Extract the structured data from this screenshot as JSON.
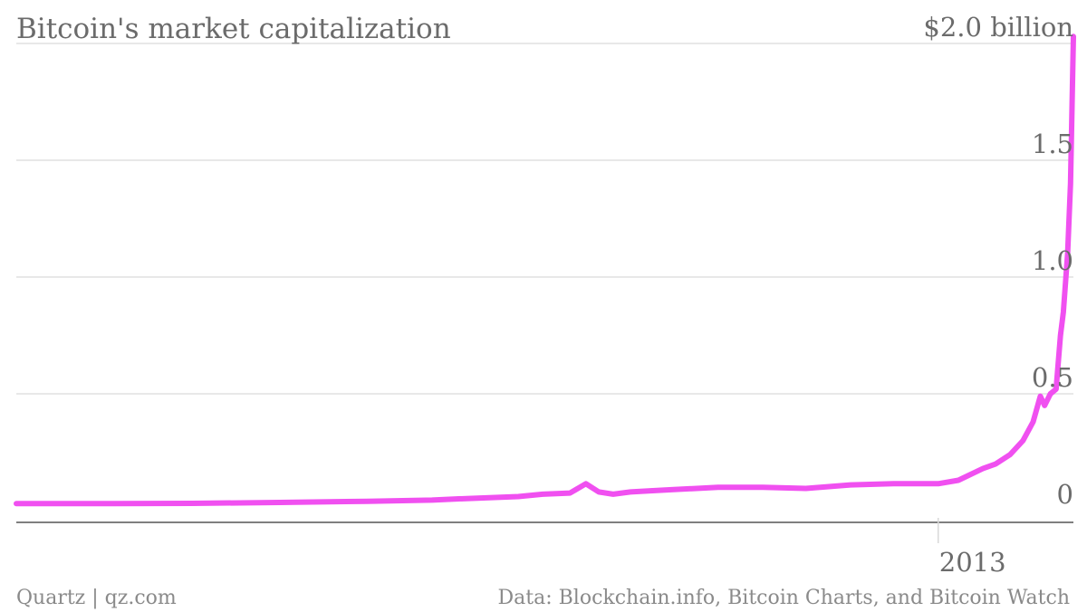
{
  "chart_data": {
    "type": "line",
    "title": "Bitcoin's market capitalization",
    "ylim": [
      0,
      2.0
    ],
    "y_ticks": [
      {
        "value": 2.0,
        "label": "$2.0 billion"
      },
      {
        "value": 1.5,
        "label": "1.5"
      },
      {
        "value": 1.0,
        "label": "1.0"
      },
      {
        "value": 0.5,
        "label": "0.5"
      },
      {
        "value": 0,
        "label": "0"
      }
    ],
    "x_ticks": [
      {
        "value": "2013-01-01",
        "label": "2013"
      }
    ],
    "xlim": [
      "2011-04-01",
      "2013-04-05"
    ],
    "grid": true,
    "series": [
      {
        "color": "#f050f0",
        "x": [
          "2011-04-01",
          "2011-06-01",
          "2011-08-01",
          "2011-10-01",
          "2011-12-01",
          "2012-01-15",
          "2012-02-01",
          "2012-03-15",
          "2012-04-01",
          "2012-04-20",
          "2012-05-01",
          "2012-05-10",
          "2012-05-20",
          "2012-06-01",
          "2012-06-15",
          "2012-07-01",
          "2012-08-01",
          "2012-09-01",
          "2012-10-01",
          "2012-11-01",
          "2012-12-01",
          "2013-01-01",
          "2013-01-15",
          "2013-02-01",
          "2013-02-10",
          "2013-02-20",
          "2013-03-01",
          "2013-03-08",
          "2013-03-13",
          "2013-03-16",
          "2013-03-20",
          "2013-03-24",
          "2013-03-27",
          "2013-03-29",
          "2013-04-01",
          "2013-04-03",
          "2013-04-05"
        ],
        "y": [
          0.03,
          0.03,
          0.031,
          0.035,
          0.04,
          0.045,
          0.05,
          0.06,
          0.07,
          0.075,
          0.115,
          0.08,
          0.07,
          0.08,
          0.085,
          0.09,
          0.1,
          0.1,
          0.095,
          0.11,
          0.115,
          0.115,
          0.13,
          0.18,
          0.2,
          0.24,
          0.3,
          0.38,
          0.49,
          0.45,
          0.5,
          0.52,
          0.75,
          0.85,
          1.1,
          1.4,
          2.03
        ]
      }
    ]
  },
  "footer": {
    "source_left": "Quartz | qz.com",
    "source_right": "Data: Blockchain.info, Bitcoin Charts, and Bitcoin Watch"
  }
}
